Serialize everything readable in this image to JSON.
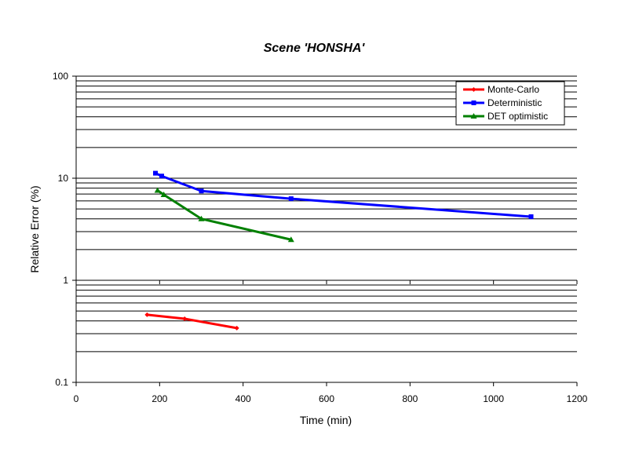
{
  "chart_data": {
    "type": "line",
    "title": "Scene  'HONSHA'",
    "xlabel": "Time (min)",
    "ylabel": "Relative Error (%)",
    "xlim": [
      0,
      1200
    ],
    "ylim": [
      0.1,
      100
    ],
    "yscale": "log",
    "x_ticks": [
      0,
      200,
      400,
      600,
      800,
      1000,
      1200
    ],
    "x_tick_labels": [
      "0",
      "200",
      "400",
      "600",
      "800",
      "1000",
      "1200"
    ],
    "y_ticks": [
      0.1,
      1,
      10,
      100
    ],
    "y_tick_labels": [
      "0.1",
      "1",
      "10",
      "100"
    ],
    "grid": "horizontal",
    "legend_position": "top-right",
    "series": [
      {
        "name": "Monte-Carlo",
        "color": "#ff0000",
        "marker": "diamond",
        "points": [
          [
            170,
            0.46
          ],
          [
            260,
            0.42
          ],
          [
            385,
            0.34
          ]
        ]
      },
      {
        "name": "Deterministic",
        "color": "#0000ff",
        "marker": "square",
        "points": [
          [
            190,
            11.2
          ],
          [
            205,
            10.5
          ],
          [
            300,
            7.5
          ],
          [
            515,
            6.3
          ],
          [
            1090,
            4.2
          ]
        ]
      },
      {
        "name": "DET optimistic",
        "color": "#008000",
        "marker": "triangle",
        "points": [
          [
            195,
            7.6
          ],
          [
            210,
            6.9
          ],
          [
            300,
            4.0
          ],
          [
            515,
            2.5
          ]
        ]
      }
    ]
  }
}
